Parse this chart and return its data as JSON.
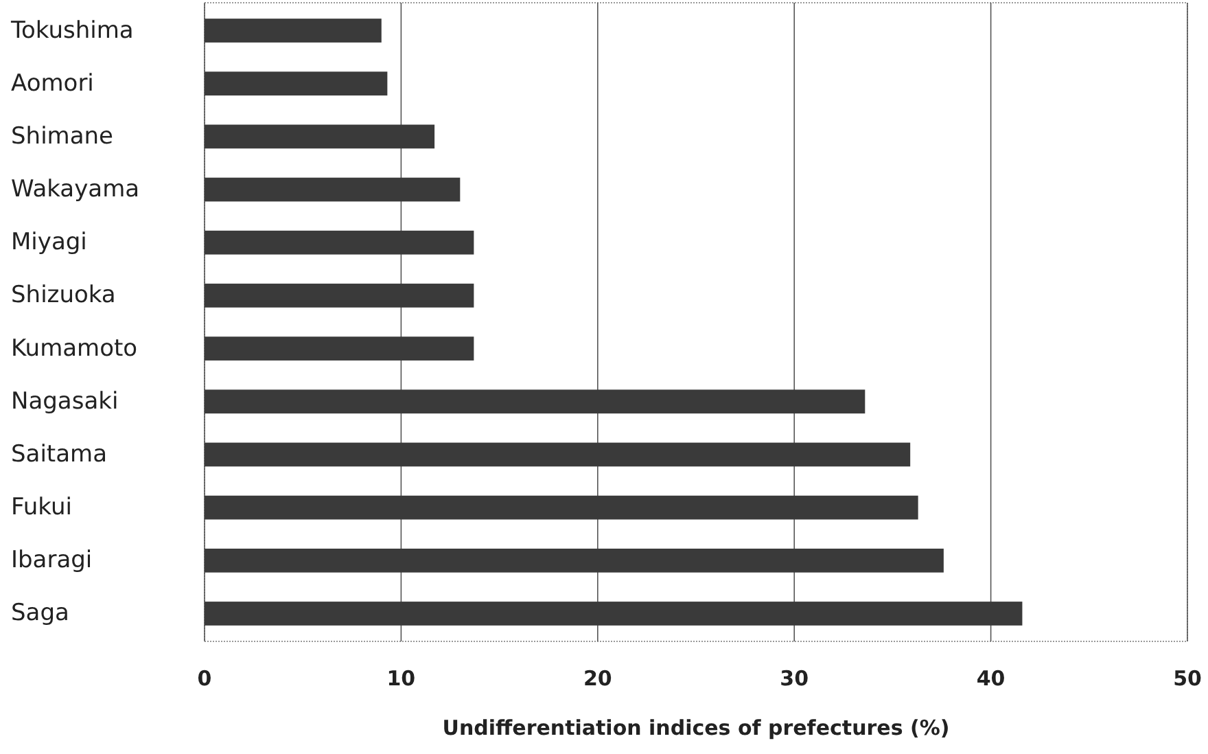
{
  "chart_data": {
    "type": "bar",
    "orientation": "horizontal",
    "xlabel": "Undifferentiation indices of prefectures (%)",
    "categories": [
      "Tokushima",
      "Aomori",
      "Shimane",
      "Wakayama",
      "Miyagi",
      "Shizuoka",
      "Kumamoto",
      "Nagasaki",
      "Saitama",
      "Fukui",
      "Ibaragi",
      "Saga"
    ],
    "values": [
      9.0,
      9.3,
      11.7,
      13.0,
      13.7,
      13.7,
      13.7,
      33.6,
      35.9,
      36.3,
      37.6,
      41.6
    ],
    "color": "#3a3a3a",
    "xlim": [
      0,
      50
    ],
    "xticks": [
      0,
      10,
      20,
      30,
      40,
      50
    ],
    "grid": "x"
  }
}
